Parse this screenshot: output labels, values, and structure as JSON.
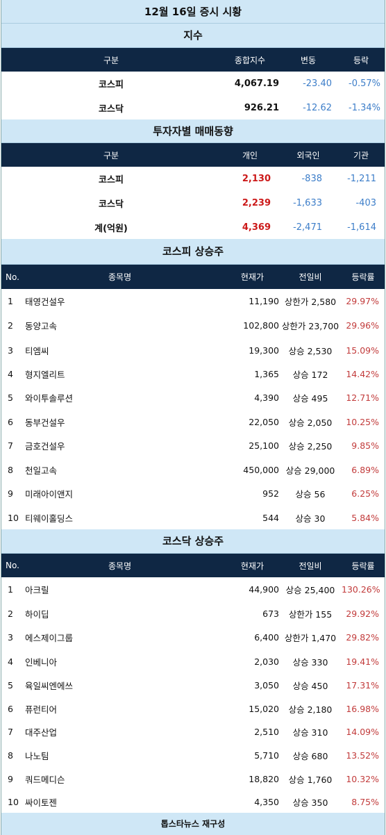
{
  "title": "12월 16일 증시 시황",
  "index_section": {
    "heading": "지수",
    "headers": [
      "구분",
      "종합지수",
      "변동",
      "등락"
    ],
    "rows": [
      {
        "name": "코스피",
        "value": "4,067.19",
        "change": "-23.40",
        "pct": "-0.57%"
      },
      {
        "name": "코스닥",
        "value": "926.21",
        "change": "-12.62",
        "pct": "-1.34%"
      }
    ]
  },
  "investor_section": {
    "heading": "투자자별 매매동향",
    "headers": [
      "구분",
      "개인",
      "외국인",
      "기관"
    ],
    "rows": [
      {
        "name": "코스피",
        "individual": "2,130",
        "foreign": "-838",
        "institution": "-1,211"
      },
      {
        "name": "코스닥",
        "individual": "2,239",
        "foreign": "-1,633",
        "institution": "-403"
      },
      {
        "name": "계(억원)",
        "individual": "4,369",
        "foreign": "-2,471",
        "institution": "-1,614"
      }
    ]
  },
  "kospi_gainers": {
    "heading": "코스피 상승주",
    "headers": [
      "No.",
      "종목명",
      "현재가",
      "전일비",
      "등락률"
    ],
    "rows": [
      {
        "no": "1",
        "name": "태영건설우",
        "price": "11,190",
        "diff": "상한가 2,580",
        "pct": "29.97%"
      },
      {
        "no": "2",
        "name": "동양고속",
        "price": "102,800",
        "diff": "상한가 23,700",
        "pct": "29.96%"
      },
      {
        "no": "3",
        "name": "티엠씨",
        "price": "19,300",
        "diff": "상승 2,530",
        "pct": "15.09%"
      },
      {
        "no": "4",
        "name": "형지엘리트",
        "price": "1,365",
        "diff": "상승 172",
        "pct": "14.42%"
      },
      {
        "no": "5",
        "name": "와이투솔루션",
        "price": "4,390",
        "diff": "상승 495",
        "pct": "12.71%"
      },
      {
        "no": "6",
        "name": "동부건설우",
        "price": "22,050",
        "diff": "상승 2,050",
        "pct": "10.25%"
      },
      {
        "no": "7",
        "name": "금호건설우",
        "price": "25,100",
        "diff": "상승 2,250",
        "pct": "9.85%"
      },
      {
        "no": "8",
        "name": "천일고속",
        "price": "450,000",
        "diff": "상승 29,000",
        "pct": "6.89%"
      },
      {
        "no": "9",
        "name": "미래아이앤지",
        "price": "952",
        "diff": "상승 56",
        "pct": "6.25%"
      },
      {
        "no": "10",
        "name": "티웨이홀딩스",
        "price": "544",
        "diff": "상승 30",
        "pct": "5.84%"
      }
    ]
  },
  "kosdaq_gainers": {
    "heading": "코스닥 상승주",
    "headers": [
      "No.",
      "종목명",
      "현재가",
      "전일비",
      "등락률"
    ],
    "rows": [
      {
        "no": "1",
        "name": "아크릴",
        "price": "44,900",
        "diff": "상승 25,400",
        "pct": "130.26%"
      },
      {
        "no": "2",
        "name": "하이딥",
        "price": "673",
        "diff": "상한가 155",
        "pct": "29.92%"
      },
      {
        "no": "3",
        "name": "에스제이그룹",
        "price": "6,400",
        "diff": "상한가 1,470",
        "pct": "29.82%"
      },
      {
        "no": "4",
        "name": "인베니아",
        "price": "2,030",
        "diff": "상승 330",
        "pct": "19.41%"
      },
      {
        "no": "5",
        "name": "육일씨엔에쓰",
        "price": "3,050",
        "diff": "상승 450",
        "pct": "17.31%"
      },
      {
        "no": "6",
        "name": "퓨런티어",
        "price": "15,020",
        "diff": "상승 2,180",
        "pct": "16.98%"
      },
      {
        "no": "7",
        "name": "대주산업",
        "price": "2,510",
        "diff": "상승 310",
        "pct": "14.09%"
      },
      {
        "no": "8",
        "name": "나노팀",
        "price": "5,710",
        "diff": "상승 680",
        "pct": "13.52%"
      },
      {
        "no": "9",
        "name": "쿼드메디슨",
        "price": "18,820",
        "diff": "상승 1,760",
        "pct": "10.32%"
      },
      {
        "no": "10",
        "name": "싸이토젠",
        "price": "4,350",
        "diff": "상승 350",
        "pct": "8.75%"
      }
    ]
  },
  "footer": "톱스타뉴스 재구성",
  "colors": {
    "header_bg": "#0f2744",
    "band_bg": "#cfe7f6",
    "negative": "#3d7ec9",
    "positive": "#cc1a1a"
  }
}
